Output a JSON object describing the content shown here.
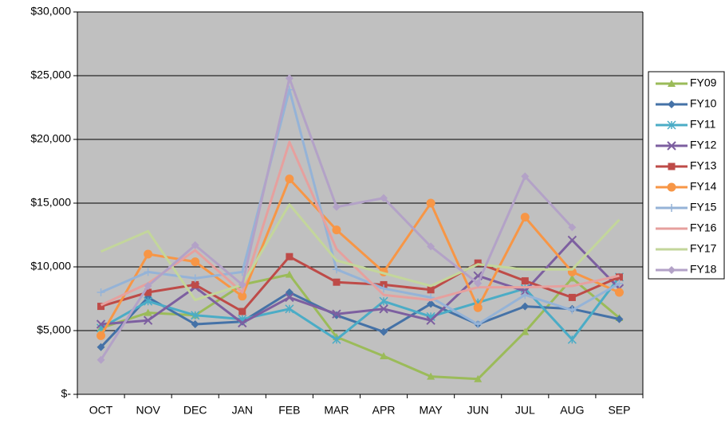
{
  "chart_data": {
    "type": "line",
    "categories": [
      "OCT",
      "NOV",
      "DEC",
      "JAN",
      "FEB",
      "MAR",
      "APR",
      "MAY",
      "JUN",
      "JUL",
      "AUG",
      "SEP"
    ],
    "ylim": [
      0,
      30000
    ],
    "yticks": [
      {
        "value": 0,
        "label": "$-"
      },
      {
        "value": 5000,
        "label": "$5,000"
      },
      {
        "value": 10000,
        "label": "$10,000"
      },
      {
        "value": 15000,
        "label": "$15,000"
      },
      {
        "value": 20000,
        "label": "$20,000"
      },
      {
        "value": 25000,
        "label": "$25,000"
      },
      {
        "value": 30000,
        "label": "$30,000"
      }
    ],
    "grid": true,
    "legend": "right",
    "series": [
      {
        "name": "FY09",
        "color": "#9bbb59",
        "marker": "triangle",
        "values": [
          5200,
          6400,
          6200,
          8600,
          9400,
          4500,
          3000,
          1400,
          1200,
          4900,
          9100,
          6000
        ]
      },
      {
        "name": "FY10",
        "color": "#4572a7",
        "marker": "diamond",
        "values": [
          3700,
          7600,
          5500,
          5700,
          8000,
          6200,
          4900,
          7100,
          5500,
          6900,
          6700,
          5900
        ]
      },
      {
        "name": "FY11",
        "color": "#4bacc6",
        "marker": "star",
        "values": [
          5200,
          7300,
          6200,
          5900,
          6700,
          4300,
          7300,
          6100,
          7200,
          8300,
          4300,
          9200
        ]
      },
      {
        "name": "FY12",
        "color": "#7d5fa0",
        "marker": "x",
        "values": [
          5500,
          5800,
          8400,
          5600,
          7600,
          6300,
          6700,
          5800,
          9300,
          8100,
          12100,
          8300
        ]
      },
      {
        "name": "FY13",
        "color": "#be4b48",
        "marker": "square",
        "values": [
          6900,
          8000,
          8600,
          6500,
          10800,
          8800,
          8600,
          8200,
          10300,
          8900,
          7600,
          9200
        ]
      },
      {
        "name": "FY14",
        "color": "#f79646",
        "marker": "circle",
        "values": [
          4600,
          11000,
          10400,
          7700,
          16900,
          12900,
          9600,
          15000,
          6800,
          13900,
          9600,
          8000
        ]
      },
      {
        "name": "FY15",
        "color": "#95b3d7",
        "marker": "plus",
        "values": [
          8000,
          9600,
          9100,
          9600,
          23900,
          9800,
          8300,
          7600,
          5500,
          7800,
          6600,
          8700
        ]
      },
      {
        "name": "FY16",
        "color": "#e6a09e",
        "marker": "none",
        "values": [
          7000,
          8700,
          11300,
          8000,
          19800,
          11400,
          7800,
          7400,
          8400,
          8400,
          8500,
          9300
        ]
      },
      {
        "name": "FY17",
        "color": "#c3d69b",
        "marker": "none",
        "values": [
          11200,
          12800,
          7400,
          8600,
          14900,
          10500,
          9500,
          8500,
          10200,
          9800,
          9800,
          13700
        ]
      },
      {
        "name": "FY18",
        "color": "#b3a2c7",
        "marker": "diamond",
        "values": [
          2700,
          8500,
          11700,
          8600,
          24800,
          14700,
          15400,
          11600,
          8700,
          17100,
          13100,
          null
        ]
      }
    ]
  }
}
